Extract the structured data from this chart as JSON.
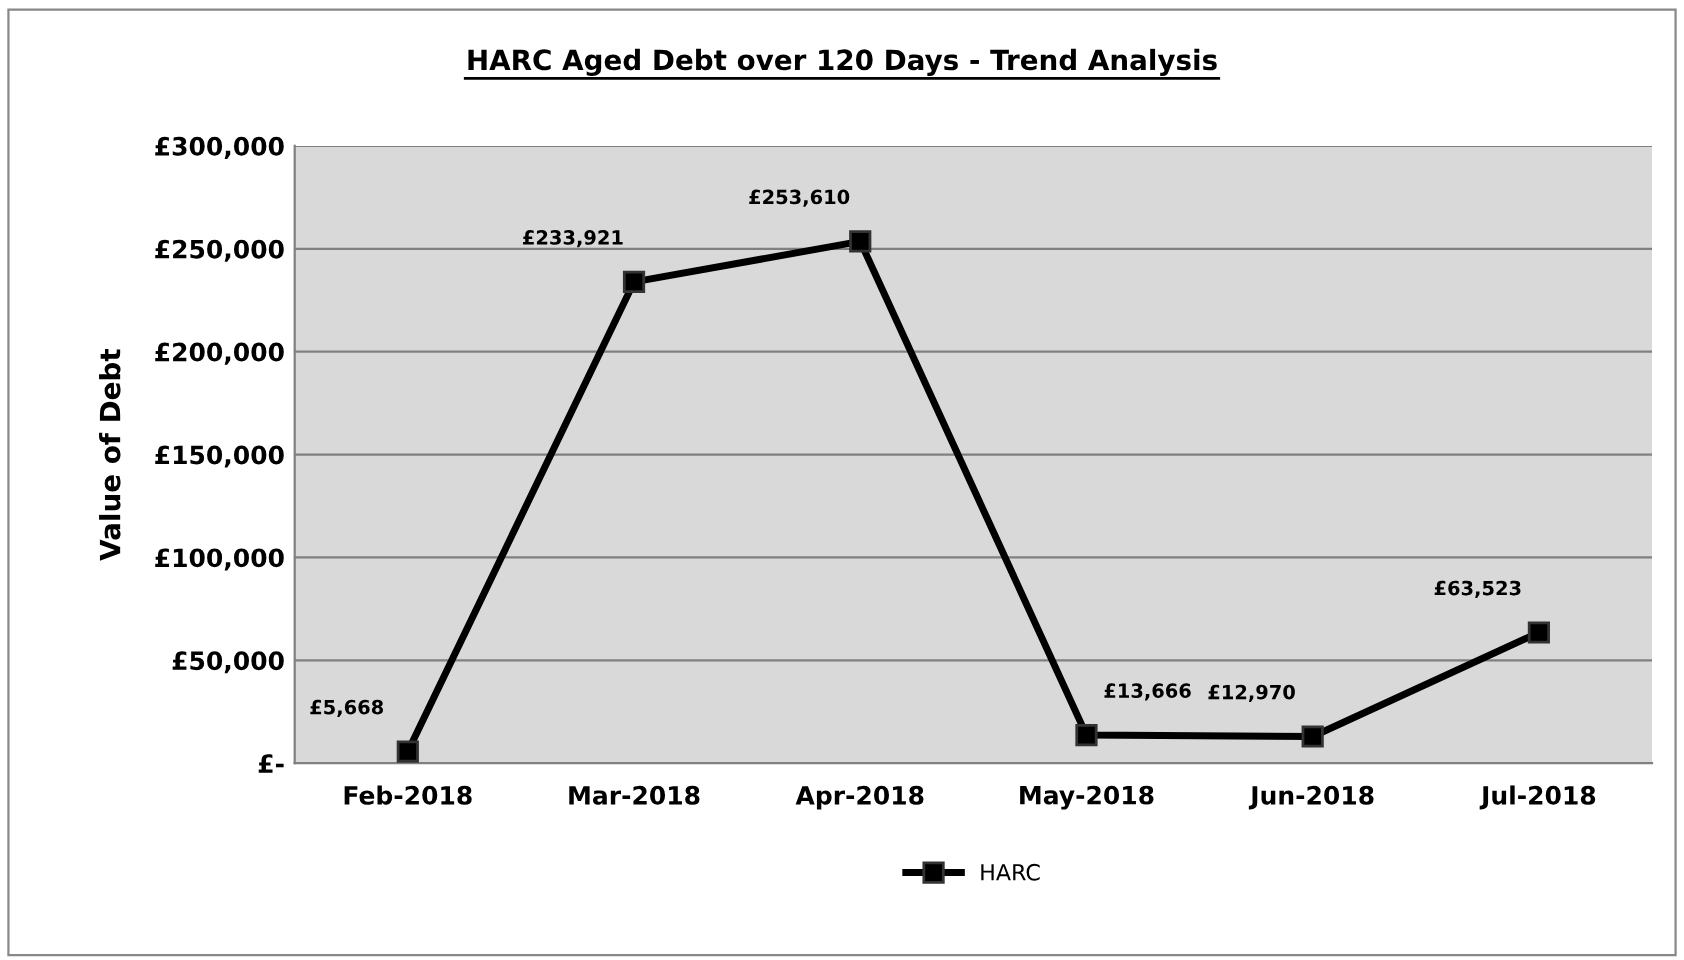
{
  "chart_data": {
    "type": "line",
    "title": "HARC Aged Debt over 120 Days - Trend Analysis",
    "ylabel": "Value of Debt",
    "categories": [
      "Feb-2018",
      "Mar-2018",
      "Apr-2018",
      "May-2018",
      "Jun-2018",
      "Jul-2018"
    ],
    "series": [
      {
        "name": "HARC",
        "color": "#000000",
        "values": [
          5668,
          233921,
          253610,
          13666,
          12970,
          63523
        ],
        "value_labels": [
          "£5,668",
          "£233,921",
          "£253,610",
          "£13,666",
          "£12,970",
          "£63,523"
        ]
      }
    ],
    "ylim": [
      0,
      300000
    ],
    "yticks": [
      {
        "value": 0,
        "label": "£-"
      },
      {
        "value": 50000,
        "label": "£50,000"
      },
      {
        "value": 100000,
        "label": "£100,000"
      },
      {
        "value": 150000,
        "label": "£150,000"
      },
      {
        "value": 200000,
        "label": "£200,000"
      },
      {
        "value": 250000,
        "label": "£250,000"
      },
      {
        "value": 300000,
        "label": "£300,000"
      }
    ],
    "grid": "y",
    "legend": "bottom",
    "marker": "square",
    "line_style": "solid"
  }
}
